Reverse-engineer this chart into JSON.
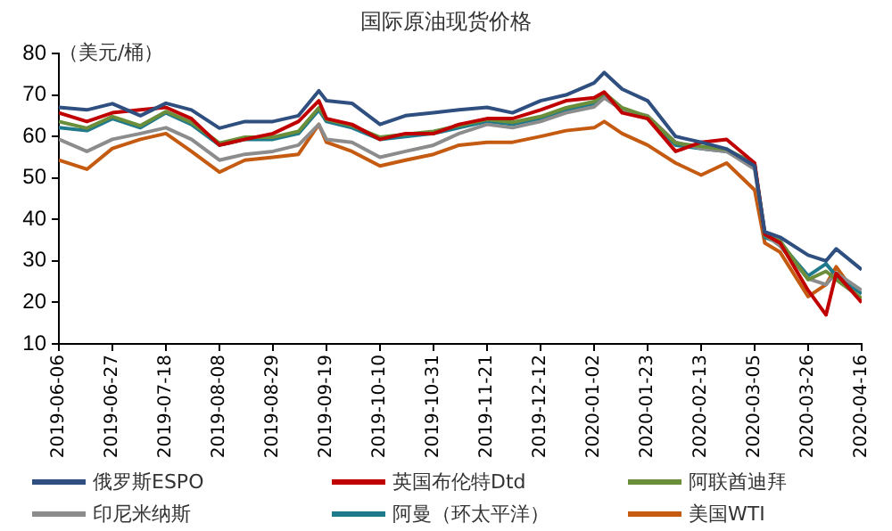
{
  "chart_data": {
    "type": "line",
    "title": "国际原油现货价格",
    "ylabel": "（美元/桶）",
    "x": [
      "2019-06-06",
      "2019-06-17",
      "2019-06-27",
      "2019-07-08",
      "2019-07-18",
      "2019-07-28",
      "2019-08-08",
      "2019-08-18",
      "2019-08-29",
      "2019-09-08",
      "2019-09-16",
      "2019-09-19",
      "2019-09-29",
      "2019-10-10",
      "2019-10-20",
      "2019-10-31",
      "2019-11-10",
      "2019-11-21",
      "2019-12-01",
      "2019-12-12",
      "2019-12-22",
      "2020-01-02",
      "2020-01-06",
      "2020-01-13",
      "2020-01-23",
      "2020-02-03",
      "2020-02-13",
      "2020-02-23",
      "2020-03-05",
      "2020-03-09",
      "2020-03-15",
      "2020-03-26",
      "2020-04-02",
      "2020-04-06",
      "2020-04-16"
    ],
    "series": [
      {
        "name": "俄罗斯ESPO",
        "color": "#2e4f7f",
        "values": [
          67,
          66.4,
          67.9,
          65,
          68,
          66.4,
          62,
          63.6,
          63.6,
          65,
          71,
          68.6,
          68,
          62.9,
          65,
          65.7,
          66.4,
          67,
          65.7,
          68.6,
          70,
          72.9,
          75.4,
          71.4,
          68.6,
          60,
          58.6,
          57,
          52.9,
          37,
          35.7,
          31.4,
          30,
          32.9,
          27.9
        ]
      },
      {
        "name": "英国布伦特Dtd",
        "color": "#c00000",
        "values": [
          65.7,
          63.6,
          65.7,
          66.4,
          67,
          64.3,
          57.9,
          59.3,
          60.7,
          63.6,
          68.6,
          64.3,
          62.9,
          59.3,
          60.7,
          60.7,
          62.9,
          64.3,
          64.3,
          66.4,
          68.6,
          69.3,
          70.7,
          65.7,
          64.3,
          56.4,
          58.6,
          59.3,
          53.6,
          36.4,
          34.3,
          22.9,
          17,
          27,
          20
        ]
      },
      {
        "name": "阿联酋迪拜",
        "color": "#6b8e3a",
        "values": [
          63.6,
          62,
          64.8,
          62.6,
          66,
          63.4,
          58.4,
          59.8,
          59.8,
          61.2,
          66.9,
          64.1,
          62.6,
          59.8,
          60.5,
          61.2,
          62.6,
          64.1,
          63.4,
          64.8,
          66.9,
          68.4,
          70.5,
          66.9,
          64.8,
          58.4,
          57.6,
          56.9,
          53.4,
          36.2,
          34.8,
          25.5,
          27.5,
          25.5,
          21
        ]
      },
      {
        "name": "印尼米纳斯",
        "color": "#8c8c8c",
        "values": [
          59.3,
          56.4,
          59.3,
          60.7,
          62.1,
          59.3,
          54.3,
          55.7,
          56.4,
          57.9,
          62.9,
          59.3,
          58.6,
          55,
          56.4,
          57.9,
          60.7,
          62.9,
          62.1,
          63.6,
          65.7,
          67.1,
          69.3,
          66.4,
          65,
          58.6,
          57.1,
          56.4,
          52.1,
          36.4,
          33.6,
          25.7,
          24.3,
          27.1,
          22.9
        ]
      },
      {
        "name": "阿曼（环太平洋）",
        "color": "#1f7a8c",
        "values": [
          62.1,
          61.4,
          64.3,
          62.1,
          65.7,
          62.9,
          57.9,
          59.3,
          59.3,
          60.7,
          66.4,
          63.6,
          62.1,
          59.3,
          60,
          60.7,
          62.1,
          63.6,
          62.9,
          64.3,
          66.4,
          67.9,
          70,
          66.4,
          64.3,
          57.9,
          57.1,
          56.4,
          52.9,
          35.7,
          34.3,
          26.4,
          29.3,
          26.4,
          22.1
        ]
      },
      {
        "name": "美国WTI",
        "color": "#c55a11",
        "values": [
          54.3,
          52.1,
          57.1,
          59.3,
          60.7,
          56.4,
          51.4,
          54.3,
          55,
          55.7,
          62.9,
          58.6,
          56.4,
          52.9,
          54.3,
          55.7,
          57.9,
          58.6,
          58.6,
          60,
          61.4,
          62.1,
          63.6,
          60.7,
          57.9,
          53.6,
          50.7,
          53.6,
          47.1,
          34.3,
          32.1,
          21.4,
          24.3,
          28.6,
          20
        ]
      }
    ],
    "xlim": [
      "2019-06-06",
      "2020-04-16"
    ],
    "xticks": [
      "2019-06-06",
      "2019-06-27",
      "2019-07-18",
      "2019-08-08",
      "2019-08-29",
      "2019-09-19",
      "2019-10-10",
      "2019-10-31",
      "2019-11-21",
      "2019-12-12",
      "2020-01-02",
      "2020-01-23",
      "2020-02-13",
      "2020-03-05",
      "2020-03-26",
      "2020-04-16"
    ],
    "ylim": [
      10,
      80
    ],
    "yticks": [
      10,
      20,
      30,
      40,
      50,
      60,
      70,
      80
    ],
    "legend": "bottom",
    "marker": "none",
    "line_style": "solid",
    "grid": false
  }
}
